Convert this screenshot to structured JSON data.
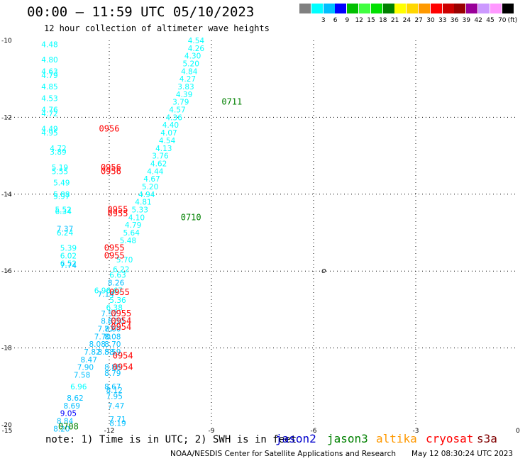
{
  "header": {
    "title": "00:00 – 11:59 UTC 05/10/2023",
    "subtitle": "12 hour collection of altimeter wave heights"
  },
  "legend": {
    "unit": "(ft)",
    "bins": [
      {
        "color": "#808080",
        "label": ""
      },
      {
        "color": "#00ffff",
        "label": "3"
      },
      {
        "color": "#00bfff",
        "label": "6"
      },
      {
        "color": "#0000ff",
        "label": "9"
      },
      {
        "color": "#00bf00",
        "label": "12"
      },
      {
        "color": "#40ff40",
        "label": "15"
      },
      {
        "color": "#00e000",
        "label": "18"
      },
      {
        "color": "#008000",
        "label": "21"
      },
      {
        "color": "#ffff00",
        "label": "24"
      },
      {
        "color": "#ffd700",
        "label": "27"
      },
      {
        "color": "#ff9900",
        "label": "30"
      },
      {
        "color": "#ff0000",
        "label": "33"
      },
      {
        "color": "#cc0000",
        "label": "36"
      },
      {
        "color": "#990000",
        "label": "39"
      },
      {
        "color": "#990099",
        "label": "42"
      },
      {
        "color": "#cc99ff",
        "label": "45"
      },
      {
        "color": "#ff99ff",
        "label": "70"
      },
      {
        "color": "#000000",
        "label": ""
      }
    ]
  },
  "map": {
    "lon_range": [
      -15,
      0
    ],
    "lat_range": [
      -20,
      -10
    ],
    "x_ticks": [
      {
        "value": -15,
        "label": "-15"
      },
      {
        "value": -12,
        "label": "-12"
      },
      {
        "value": -9,
        "label": "-9"
      },
      {
        "value": -6,
        "label": "-6"
      },
      {
        "value": -3,
        "label": "-3"
      },
      {
        "value": 0,
        "label": "0"
      }
    ],
    "y_ticks": [
      {
        "value": -10,
        "label": "-10"
      },
      {
        "value": -12,
        "label": "-12"
      },
      {
        "value": -14,
        "label": "-14"
      },
      {
        "value": -16,
        "label": "-16"
      },
      {
        "value": -18,
        "label": "-18"
      },
      {
        "value": -20,
        "label": "-20"
      }
    ],
    "grid": "dotted",
    "island_symbol": "o",
    "island_lon": -5.7,
    "island_lat": -16.0
  },
  "observations": [
    {
      "v": "4.48",
      "lon": -13.75,
      "lat": -10.1,
      "c": "#00ffff"
    },
    {
      "v": "4.80",
      "lon": -13.75,
      "lat": -10.5,
      "c": "#00ffff"
    },
    {
      "v": "4.63",
      "lon": -13.75,
      "lat": -10.8,
      "c": "#00ffff"
    },
    {
      "v": "4.79",
      "lon": -13.75,
      "lat": -10.9,
      "c": "#00ffff"
    },
    {
      "v": "4.85",
      "lon": -13.75,
      "lat": -11.2,
      "c": "#00ffff"
    },
    {
      "v": "4.53",
      "lon": -13.75,
      "lat": -11.5,
      "c": "#00ffff"
    },
    {
      "v": "4.76",
      "lon": -13.75,
      "lat": -11.8,
      "c": "#00ffff"
    },
    {
      "v": "4.72",
      "lon": -13.75,
      "lat": -11.9,
      "c": "#00ffff"
    },
    {
      "v": "4.49",
      "lon": -13.75,
      "lat": -12.3,
      "c": "#00ffff"
    },
    {
      "v": "4.95",
      "lon": -13.75,
      "lat": -12.4,
      "c": "#00ffff"
    },
    {
      "v": "4.72",
      "lon": -13.5,
      "lat": -12.8,
      "c": "#00ffff"
    },
    {
      "v": "3.89",
      "lon": -13.5,
      "lat": -12.9,
      "c": "#00ffff"
    },
    {
      "v": "5.19",
      "lon": -13.45,
      "lat": -13.3,
      "c": "#00ffff"
    },
    {
      "v": "5.55",
      "lon": -13.45,
      "lat": -13.4,
      "c": "#00ffff"
    },
    {
      "v": "5.49",
      "lon": -13.4,
      "lat": -13.7,
      "c": "#00ffff"
    },
    {
      "v": "5.88",
      "lon": -13.4,
      "lat": -14.0,
      "c": "#00ffff"
    },
    {
      "v": "5.97",
      "lon": -13.4,
      "lat": -14.05,
      "c": "#00ffff"
    },
    {
      "v": "5.52",
      "lon": -13.35,
      "lat": -14.4,
      "c": "#00ffff"
    },
    {
      "v": "6.34",
      "lon": -13.35,
      "lat": -14.45,
      "c": "#00ffff"
    },
    {
      "v": "7.37",
      "lon": -13.3,
      "lat": -14.9,
      "c": "#00bfff"
    },
    {
      "v": "6.24",
      "lon": -13.3,
      "lat": -15.0,
      "c": "#00ffff"
    },
    {
      "v": "5.39",
      "lon": -13.2,
      "lat": -15.4,
      "c": "#00ffff"
    },
    {
      "v": "6.02",
      "lon": -13.2,
      "lat": -15.6,
      "c": "#00ffff"
    },
    {
      "v": "6.52",
      "lon": -13.2,
      "lat": -15.8,
      "c": "#00ffff"
    },
    {
      "v": "7.74",
      "lon": -13.2,
      "lat": -15.85,
      "c": "#00bfff"
    },
    {
      "v": "4.54",
      "lon": -9.45,
      "lat": -10.0,
      "c": "#00ffff"
    },
    {
      "v": "4.26",
      "lon": -9.45,
      "lat": -10.2,
      "c": "#00ffff"
    },
    {
      "v": "4.30",
      "lon": -9.55,
      "lat": -10.4,
      "c": "#00ffff"
    },
    {
      "v": "5.20",
      "lon": -9.6,
      "lat": -10.6,
      "c": "#00ffff"
    },
    {
      "v": "4.84",
      "lon": -9.65,
      "lat": -10.8,
      "c": "#00ffff"
    },
    {
      "v": "4.27",
      "lon": -9.7,
      "lat": -11.0,
      "c": "#00ffff"
    },
    {
      "v": "3.83",
      "lon": -9.75,
      "lat": -11.2,
      "c": "#00ffff"
    },
    {
      "v": "4.39",
      "lon": -9.8,
      "lat": -11.4,
      "c": "#00ffff"
    },
    {
      "v": "3.79",
      "lon": -9.9,
      "lat": -11.6,
      "c": "#00ffff"
    },
    {
      "v": "4.57",
      "lon": -10.0,
      "lat": -11.8,
      "c": "#00ffff"
    },
    {
      "v": "4.36",
      "lon": -10.1,
      "lat": -12.0,
      "c": "#00ffff"
    },
    {
      "v": "4.40",
      "lon": -10.2,
      "lat": -12.2,
      "c": "#00ffff"
    },
    {
      "v": "4.07",
      "lon": -10.25,
      "lat": -12.4,
      "c": "#00ffff"
    },
    {
      "v": "4.54",
      "lon": -10.3,
      "lat": -12.6,
      "c": "#00ffff"
    },
    {
      "v": "4.13",
      "lon": -10.4,
      "lat": -12.8,
      "c": "#00ffff"
    },
    {
      "v": "3.76",
      "lon": -10.5,
      "lat": -13.0,
      "c": "#00ffff"
    },
    {
      "v": "4.62",
      "lon": -10.55,
      "lat": -13.2,
      "c": "#00ffff"
    },
    {
      "v": "4.44",
      "lon": -10.65,
      "lat": -13.4,
      "c": "#00ffff"
    },
    {
      "v": "4.67",
      "lon": -10.75,
      "lat": -13.6,
      "c": "#00ffff"
    },
    {
      "v": "5.20",
      "lon": -10.8,
      "lat": -13.8,
      "c": "#00ffff"
    },
    {
      "v": "4.94",
      "lon": -10.9,
      "lat": -14.0,
      "c": "#00ffff"
    },
    {
      "v": "4.81",
      "lon": -11.0,
      "lat": -14.2,
      "c": "#00ffff"
    },
    {
      "v": "5.33",
      "lon": -11.1,
      "lat": -14.4,
      "c": "#00ffff"
    },
    {
      "v": "4.10",
      "lon": -11.2,
      "lat": -14.6,
      "c": "#00ffff"
    },
    {
      "v": "4.79",
      "lon": -11.3,
      "lat": -14.8,
      "c": "#00ffff"
    },
    {
      "v": "5.64",
      "lon": -11.35,
      "lat": -15.0,
      "c": "#00ffff"
    },
    {
      "v": "5.48",
      "lon": -11.45,
      "lat": -15.2,
      "c": "#00ffff"
    },
    {
      "v": "5.70",
      "lon": -11.55,
      "lat": -15.7,
      "c": "#00ffff"
    },
    {
      "v": "6.22",
      "lon": -11.65,
      "lat": -15.95,
      "c": "#00ffff"
    },
    {
      "v": "6.63",
      "lon": -11.75,
      "lat": -16.1,
      "c": "#00ffff"
    },
    {
      "v": "8.26",
      "lon": -11.8,
      "lat": -16.3,
      "c": "#00bfff"
    },
    {
      "v": "6.96",
      "lon": -12.2,
      "lat": -16.5,
      "c": "#00ffff"
    },
    {
      "v": "7.14",
      "lon": -12.1,
      "lat": -16.6,
      "c": "#00bfff"
    },
    {
      "v": "6.67",
      "lon": -11.85,
      "lat": -16.5,
      "c": "#00ffff"
    },
    {
      "v": "5.36",
      "lon": -11.75,
      "lat": -16.75,
      "c": "#00ffff"
    },
    {
      "v": "6.38",
      "lon": -11.85,
      "lat": -16.95,
      "c": "#00ffff"
    },
    {
      "v": "7.52",
      "lon": -12.0,
      "lat": -17.1,
      "c": "#00bfff"
    },
    {
      "v": "8.01",
      "lon": -12.0,
      "lat": -17.3,
      "c": "#00bfff"
    },
    {
      "v": "8.30",
      "lon": -11.8,
      "lat": -17.3,
      "c": "#00bfff"
    },
    {
      "v": "7.60",
      "lon": -11.9,
      "lat": -17.5,
      "c": "#00bfff"
    },
    {
      "v": "7.87",
      "lon": -12.1,
      "lat": -17.5,
      "c": "#00bfff"
    },
    {
      "v": "7.70",
      "lon": -12.2,
      "lat": -17.7,
      "c": "#00bfff"
    },
    {
      "v": "8.08",
      "lon": -11.9,
      "lat": -17.7,
      "c": "#00bfff"
    },
    {
      "v": "8.08",
      "lon": -12.35,
      "lat": -17.9,
      "c": "#00bfff"
    },
    {
      "v": "8.70",
      "lon": -11.9,
      "lat": -17.9,
      "c": "#00bfff"
    },
    {
      "v": "7.82",
      "lon": -12.5,
      "lat": -18.1,
      "c": "#00bfff"
    },
    {
      "v": "8.58",
      "lon": -12.1,
      "lat": -18.1,
      "c": "#00bfff"
    },
    {
      "v": "8.59",
      "lon": -11.9,
      "lat": -18.1,
      "c": "#00bfff"
    },
    {
      "v": "8.47",
      "lon": -12.6,
      "lat": -18.3,
      "c": "#00bfff"
    },
    {
      "v": "7.90",
      "lon": -12.7,
      "lat": -18.5,
      "c": "#00bfff"
    },
    {
      "v": "8.88",
      "lon": -11.9,
      "lat": -18.5,
      "c": "#00bfff"
    },
    {
      "v": "8.79",
      "lon": -11.9,
      "lat": -18.65,
      "c": "#00bfff"
    },
    {
      "v": "7.58",
      "lon": -12.8,
      "lat": -18.7,
      "c": "#00bfff"
    },
    {
      "v": "6.96",
      "lon": -12.9,
      "lat": -19.0,
      "c": "#00ffff"
    },
    {
      "v": "8.67",
      "lon": -11.9,
      "lat": -19.0,
      "c": "#00bfff"
    },
    {
      "v": "8.12",
      "lon": -11.85,
      "lat": -19.1,
      "c": "#00bfff"
    },
    {
      "v": "7.95",
      "lon": -11.85,
      "lat": -19.25,
      "c": "#00bfff"
    },
    {
      "v": "8.62",
      "lon": -13.0,
      "lat": -19.3,
      "c": "#00bfff"
    },
    {
      "v": "7.47",
      "lon": -11.8,
      "lat": -19.5,
      "c": "#00bfff"
    },
    {
      "v": "8.69",
      "lon": -13.1,
      "lat": -19.5,
      "c": "#00bfff"
    },
    {
      "v": "9.05",
      "lon": -13.2,
      "lat": -19.7,
      "c": "#0000ff"
    },
    {
      "v": "7.71",
      "lon": -11.75,
      "lat": -19.85,
      "c": "#00bfff"
    },
    {
      "v": "8.84",
      "lon": -13.3,
      "lat": -19.9,
      "c": "#00bfff"
    },
    {
      "v": "8.19",
      "lon": -11.75,
      "lat": -19.95,
      "c": "#00bfff"
    },
    {
      "v": "8.20",
      "lon": -13.4,
      "lat": -20.1,
      "c": "#00bfff"
    }
  ],
  "pass_times": [
    {
      "t": "0711",
      "lon": -8.4,
      "lat": -11.6,
      "c": "#008000"
    },
    {
      "t": "0956",
      "lon": -12.0,
      "lat": -12.3,
      "c": "#ff0000"
    },
    {
      "t": "0956",
      "lon": -11.95,
      "lat": -13.3,
      "c": "#ff0000"
    },
    {
      "t": "0956",
      "lon": -11.95,
      "lat": -13.4,
      "c": "#ff0000"
    },
    {
      "t": "0710",
      "lon": -9.6,
      "lat": -14.6,
      "c": "#008000"
    },
    {
      "t": "0955",
      "lon": -11.75,
      "lat": -14.4,
      "c": "#ff0000"
    },
    {
      "t": "0955",
      "lon": -11.75,
      "lat": -14.5,
      "c": "#ff0000"
    },
    {
      "t": "0955",
      "lon": -11.85,
      "lat": -15.4,
      "c": "#ff0000"
    },
    {
      "t": "0955",
      "lon": -11.85,
      "lat": -15.6,
      "c": "#ff0000"
    },
    {
      "t": "0955",
      "lon": -11.7,
      "lat": -16.55,
      "c": "#ff0000"
    },
    {
      "t": "0955",
      "lon": -11.65,
      "lat": -17.1,
      "c": "#ff0000"
    },
    {
      "t": "0954",
      "lon": -11.65,
      "lat": -17.3,
      "c": "#ff0000"
    },
    {
      "t": "0954",
      "lon": -11.65,
      "lat": -17.45,
      "c": "#ff0000"
    },
    {
      "t": "0954",
      "lon": -11.6,
      "lat": -18.2,
      "c": "#ff0000"
    },
    {
      "t": "0954",
      "lon": -11.6,
      "lat": -18.5,
      "c": "#ff0000"
    },
    {
      "t": "0708",
      "lon": -13.2,
      "lat": -20.05,
      "c": "#008000"
    }
  ],
  "footer": {
    "note": "note: 1) Time is in UTC; 2) SWH is in feet",
    "satellites": [
      {
        "name": "jason2",
        "color": "#0000cc"
      },
      {
        "name": "jason3",
        "color": "#008000"
      },
      {
        "name": "altika",
        "color": "#ff9900"
      },
      {
        "name": "cryosat",
        "color": "#ff0000"
      },
      {
        "name": "s3a",
        "color": "#800000"
      }
    ],
    "credit": "NOAA/NESDIS Center for Satellite Applications and Research",
    "timestamp": "May 12 08:30:24 UTC 2023"
  }
}
